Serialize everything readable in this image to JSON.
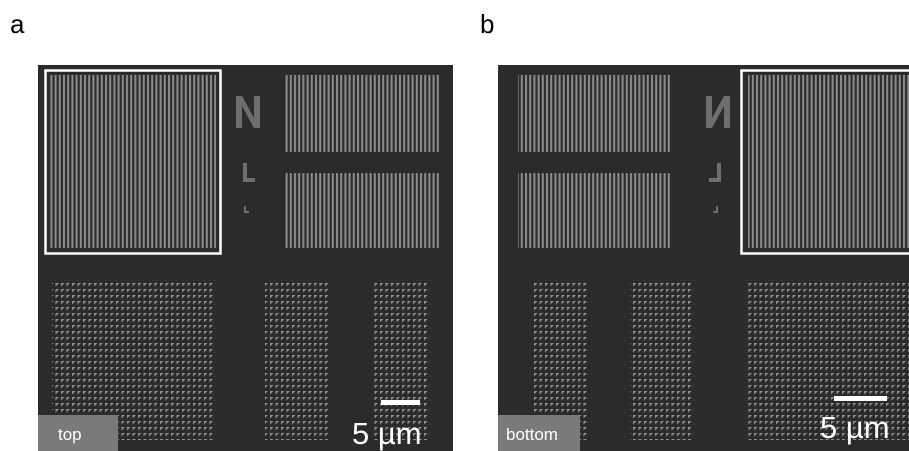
{
  "panels": [
    {
      "label": "a",
      "tag": "top",
      "scale_bar": "5 µm"
    },
    {
      "label": "b",
      "tag": "bottom",
      "scale_bar": "5 µm"
    }
  ]
}
